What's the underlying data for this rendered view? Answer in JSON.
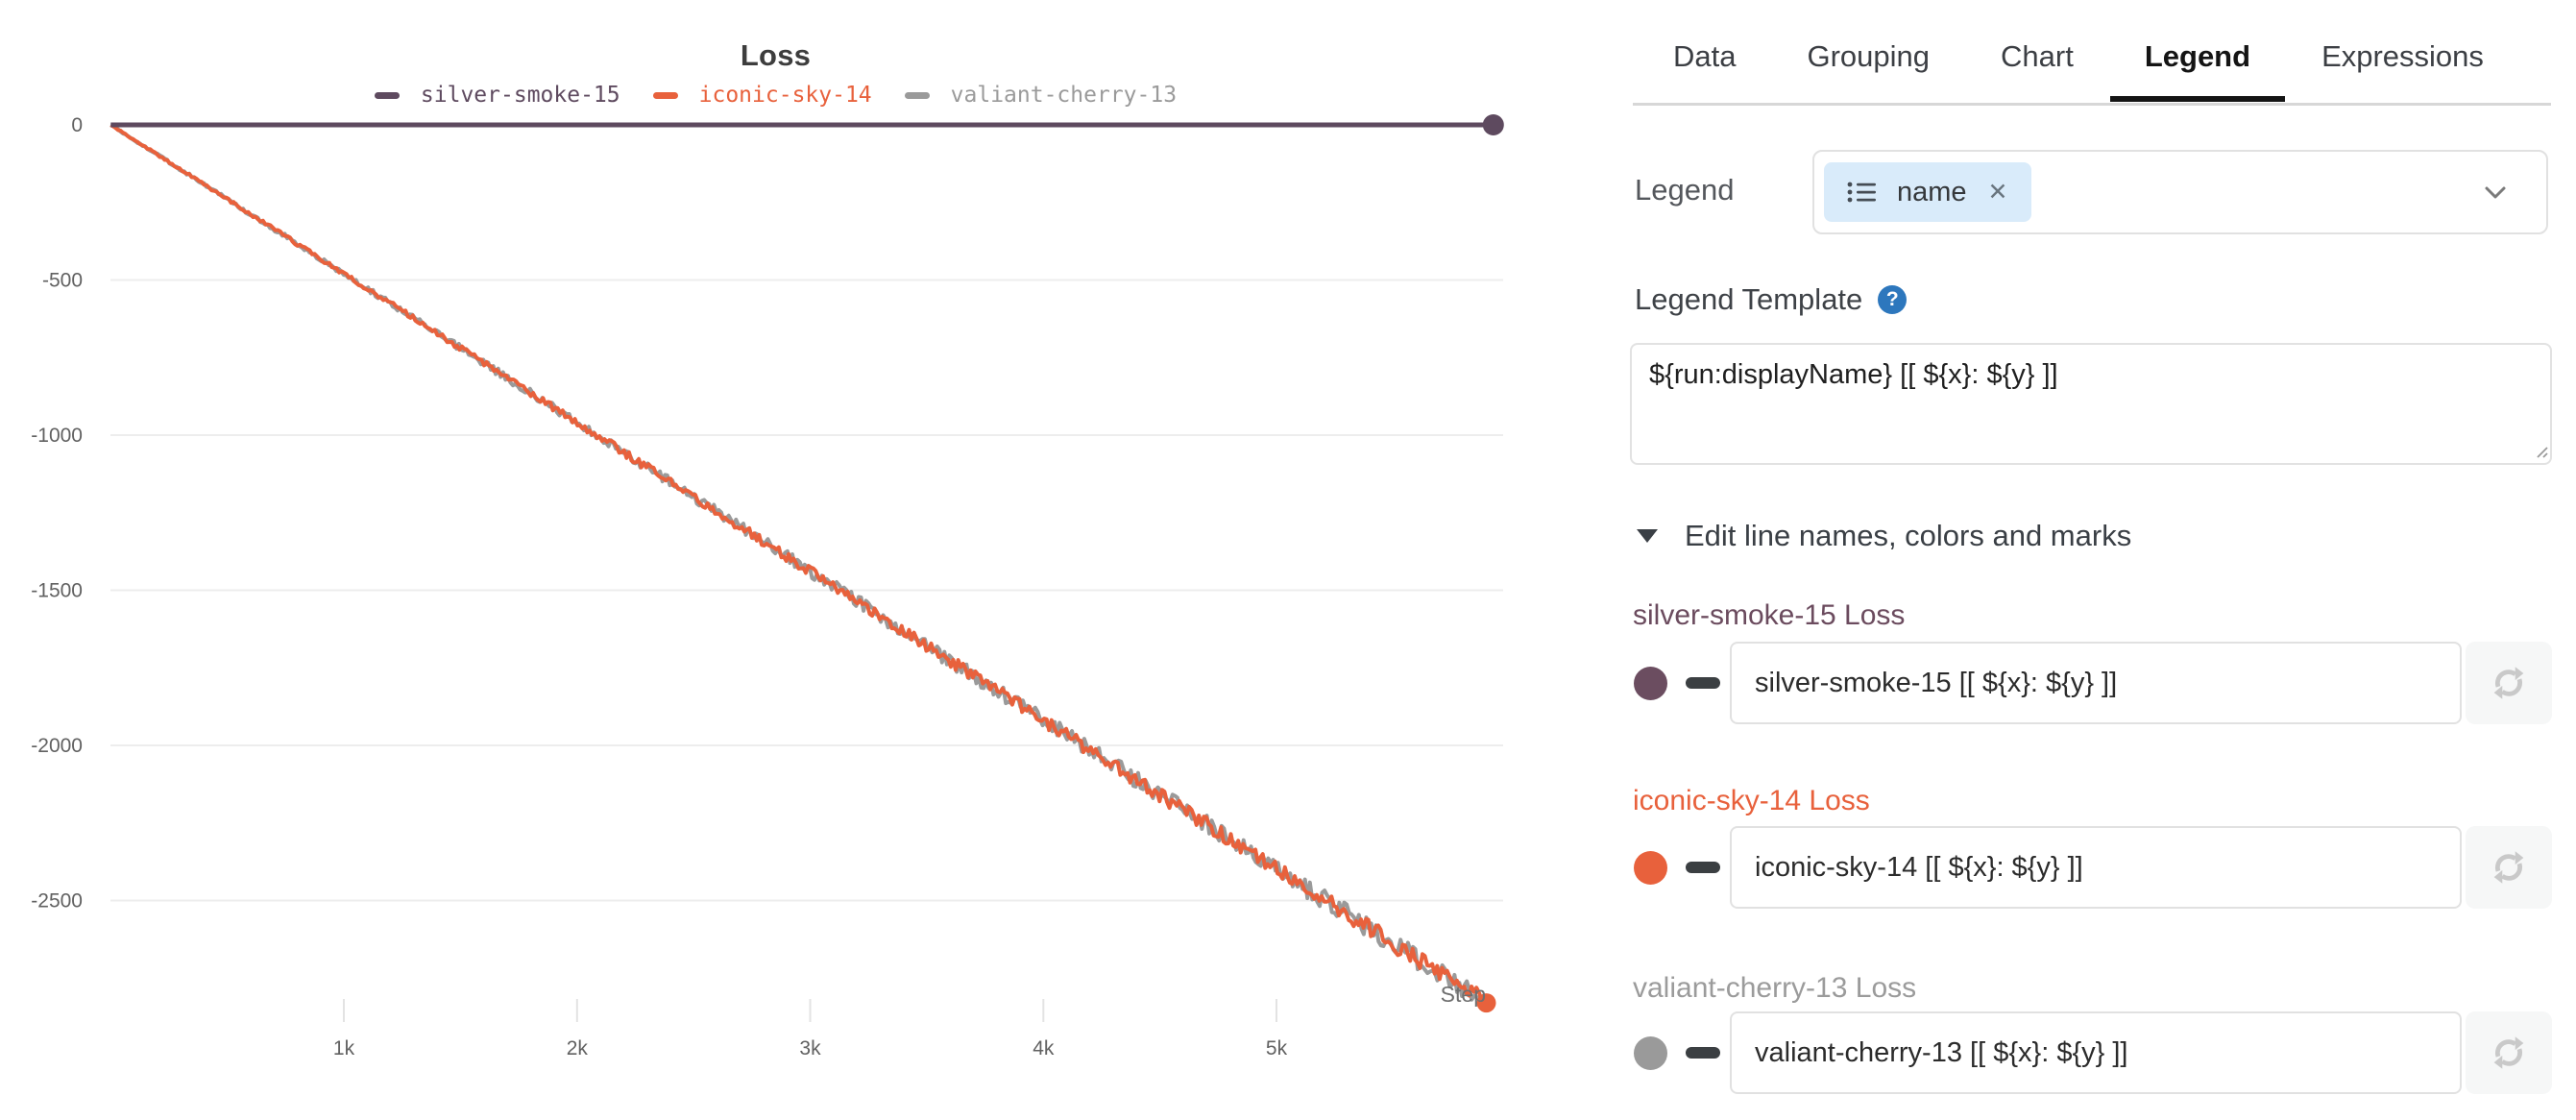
{
  "chart": {
    "title": "Loss",
    "legend": [
      {
        "label": "silver-smoke-15",
        "color": "#5e4a5f"
      },
      {
        "label": "iconic-sky-14",
        "color": "#e8613c"
      },
      {
        "label": "valiant-cherry-13",
        "color": "#9a9a9a"
      }
    ]
  },
  "chart_data": {
    "type": "line",
    "title": "Loss",
    "xlabel": "Step",
    "ylabel": "",
    "xlim": [
      0,
      6000
    ],
    "ylim": [
      -2900,
      50
    ],
    "grid": true,
    "legend_position": "top",
    "x_ticks": [
      1000,
      2000,
      3000,
      4000,
      5000
    ],
    "x_tick_labels": [
      "1k",
      "2k",
      "3k",
      "4k",
      "5k"
    ],
    "y_ticks": [
      0,
      -500,
      -1000,
      -1500,
      -2000,
      -2500
    ],
    "y_tick_labels": [
      "0",
      "-500",
      "-1000",
      "-1500",
      "-2000",
      "-2500"
    ],
    "series": [
      {
        "name": "silver-smoke-15",
        "color": "#5e4a5f",
        "start_step": 0,
        "end_step": 5930,
        "start_loss": 0,
        "end_loss": 0,
        "noise_amplitude": 0,
        "end_dot": true
      },
      {
        "name": "iconic-sky-14",
        "color": "#e8613c",
        "start_step": 0,
        "end_step": 5900,
        "start_loss": 0,
        "end_loss": -2830,
        "noise_amplitude": 30,
        "end_dot": true
      },
      {
        "name": "valiant-cherry-13",
        "color": "#9a9a9a",
        "start_step": 0,
        "end_step": 5890,
        "start_loss": 0,
        "end_loss": -2825,
        "noise_amplitude": 36,
        "end_dot": false
      }
    ]
  },
  "panel": {
    "tabs": [
      {
        "label": "Data"
      },
      {
        "label": "Grouping"
      },
      {
        "label": "Chart"
      },
      {
        "label": "Legend"
      },
      {
        "label": "Expressions"
      }
    ],
    "legend_field": {
      "label": "Legend",
      "tag": "name",
      "remove_label": "✕"
    },
    "legend_template": {
      "label": "Legend Template",
      "value": "${run:displayName} [[ ${x}: ${y} ]]"
    },
    "edit_section_label": "Edit line names, colors and marks",
    "runs": [
      {
        "heading": "silver-smoke-15 Loss",
        "heading_color": "#6b4b5e",
        "swatch_color": "#6b4d60",
        "value": "silver-smoke-15 [[ ${x}: ${y} ]]"
      },
      {
        "heading": "iconic-sky-14 Loss",
        "heading_color": "#e8613c",
        "swatch_color": "#e8613c",
        "value": "iconic-sky-14 [[ ${x}: ${y} ]]"
      },
      {
        "heading": "valiant-cherry-13 Loss",
        "heading_color": "#9b9b9b",
        "swatch_color": "#9a9a9a",
        "value": "valiant-cherry-13 [[ ${x}: ${y} ]]"
      }
    ]
  }
}
